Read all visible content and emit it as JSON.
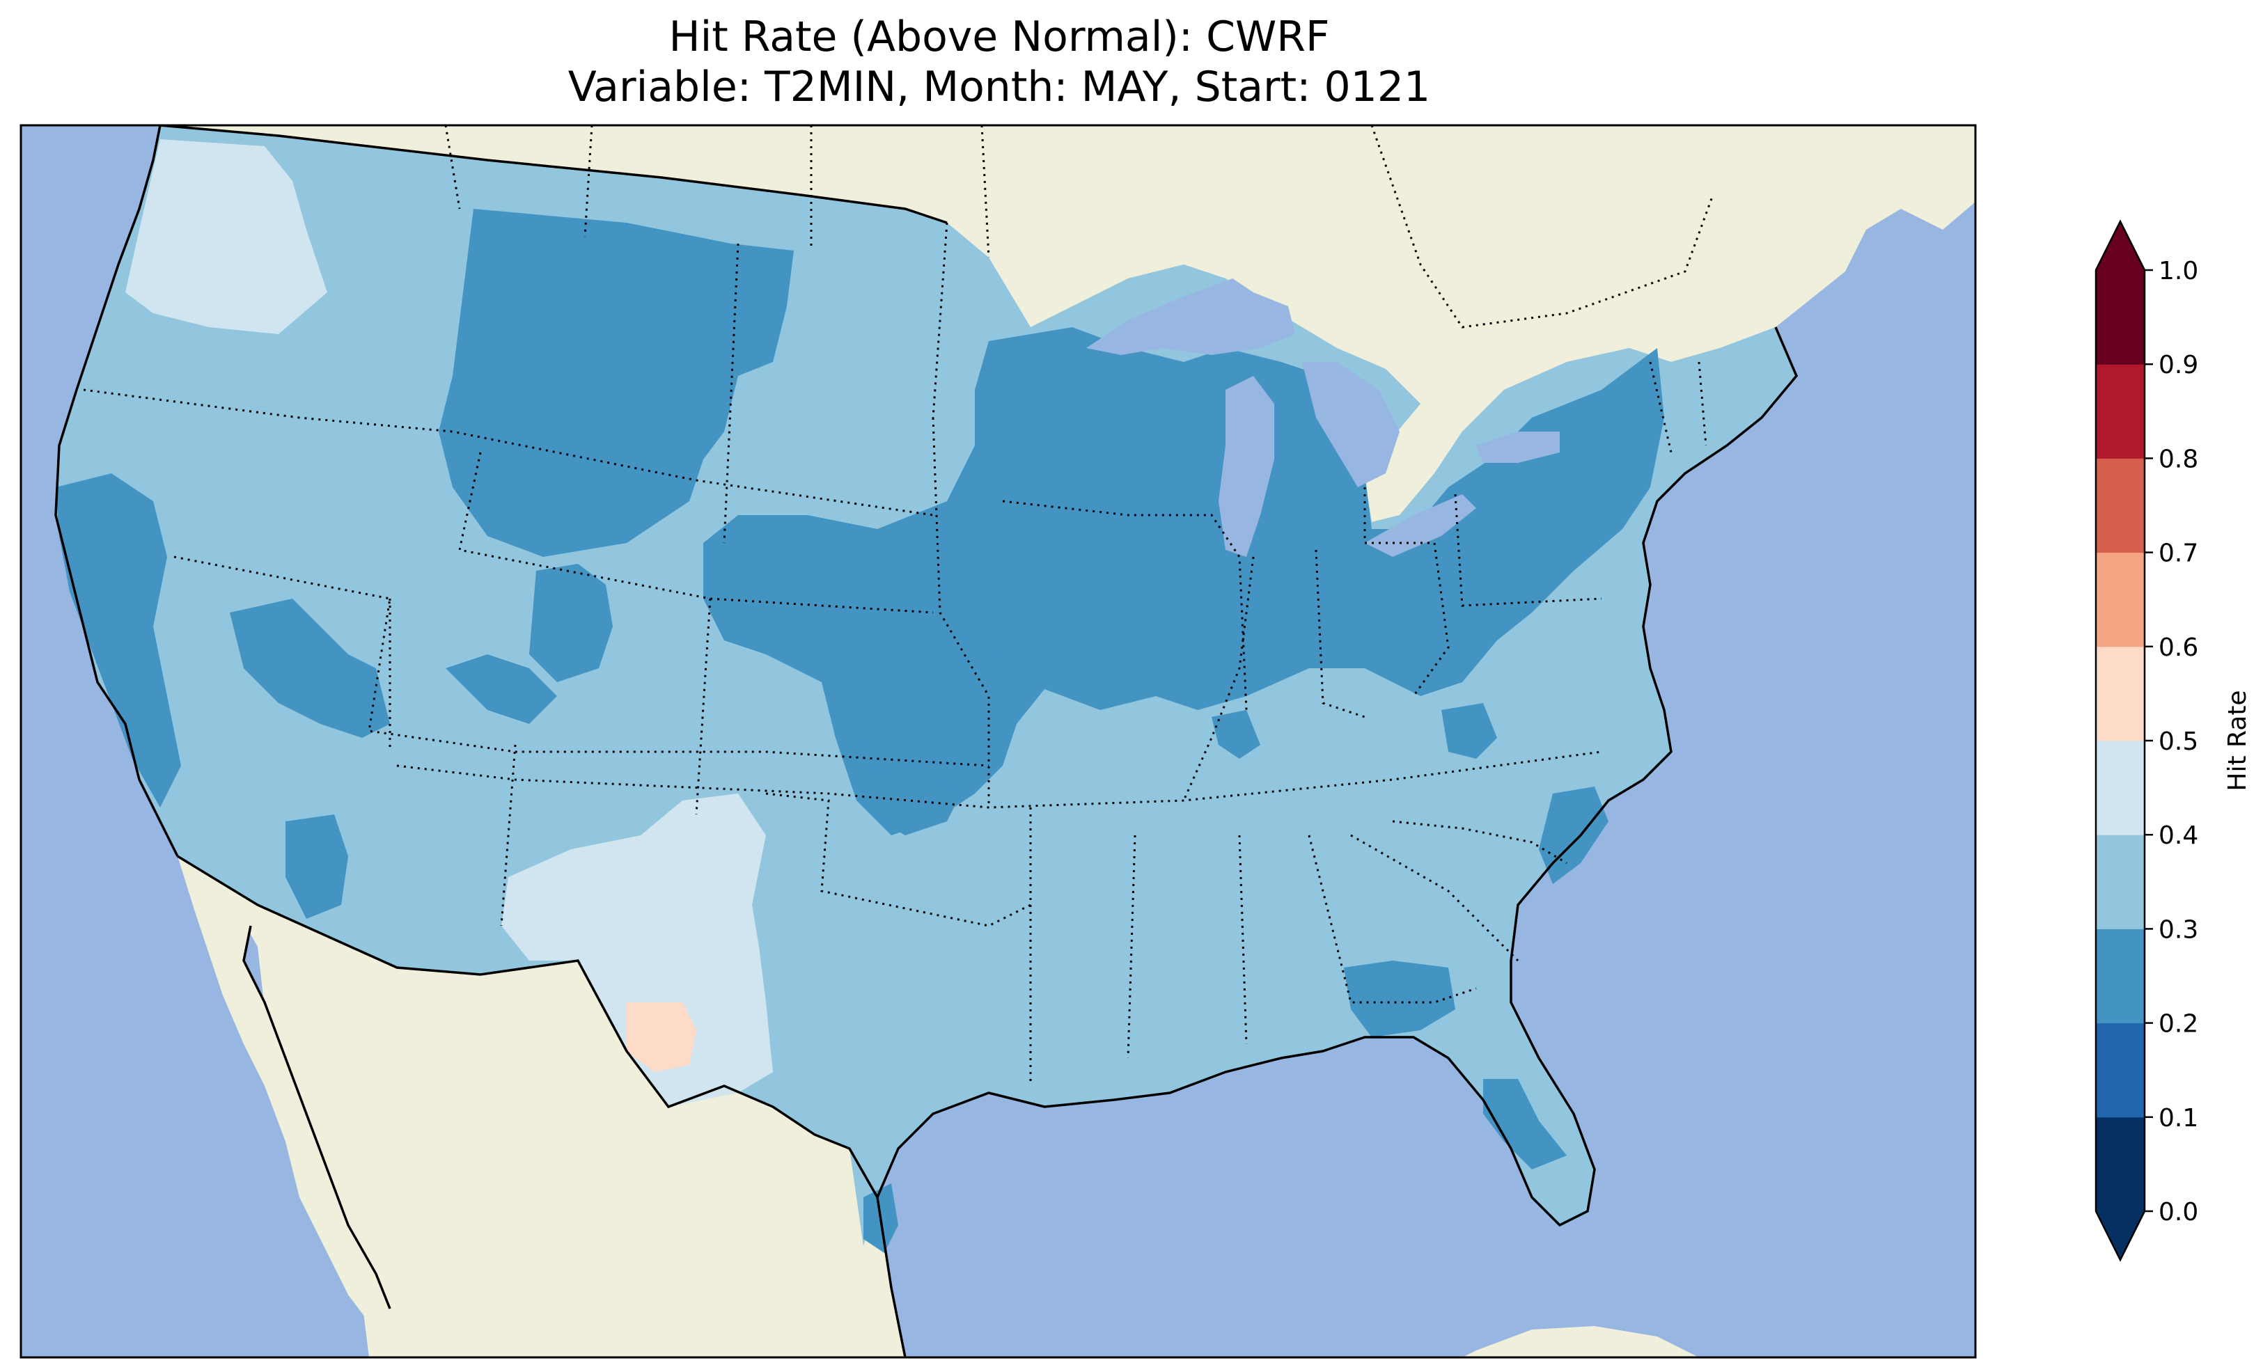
{
  "title": {
    "line1": "Hit Rate (Above Normal): CWRF",
    "line2": "Variable: T2MIN, Month: MAY, Start: 0121"
  },
  "colors": {
    "ocean": "#97b6e1",
    "land": "#efefdc",
    "lakes": "#97b6e1",
    "under": "#053061",
    "over": "#67001f"
  },
  "colorbar": {
    "label": "Hit Rate",
    "ticks": [
      "0.0",
      "0.1",
      "0.2",
      "0.3",
      "0.4",
      "0.5",
      "0.6",
      "0.7",
      "0.8",
      "0.9",
      "1.0"
    ],
    "levels": [
      0.0,
      0.1,
      0.2,
      0.3,
      0.4,
      0.5,
      0.6,
      0.7,
      0.8,
      0.9,
      1.0
    ],
    "colors": [
      "#053061",
      "#2166ac",
      "#4393c3",
      "#92c5de",
      "#d1e5f0",
      "#f7f7f7",
      "#fddbc7",
      "#f4a582",
      "#d6604d",
      "#b2182b",
      "#67001f"
    ],
    "extend": "both"
  },
  "map_data": {
    "region": "Contiguous United States",
    "dominant_class": "0.3-0.4",
    "regions": [
      {
        "area": "Northern Rockies / Northern Plains (MT, WY, ND, SD)",
        "class": "0.2-0.3"
      },
      {
        "area": "Central Plains / Midwest (NE, KS, IA, MO, IL, IN, WI, MI)",
        "class": "0.2-0.3"
      },
      {
        "area": "Ohio / Pennsylvania / New York",
        "class": "0.2-0.3"
      },
      {
        "area": "Northern California coast",
        "class": "0.2-0.3"
      },
      {
        "area": "Pacific Northwest coast",
        "class": "0.4-0.5"
      },
      {
        "area": "New Mexico / West Texas",
        "class": "0.4-0.5"
      },
      {
        "area": "Big Bend, Texas",
        "class": "0.5-0.6"
      },
      {
        "area": "Florida Panhandle / South Georgia",
        "class": "0.2-0.3"
      },
      {
        "area": "Southeast / Gulf Coast",
        "class": "0.3-0.4"
      },
      {
        "area": "Texas",
        "class": "0.3-0.4"
      }
    ]
  }
}
